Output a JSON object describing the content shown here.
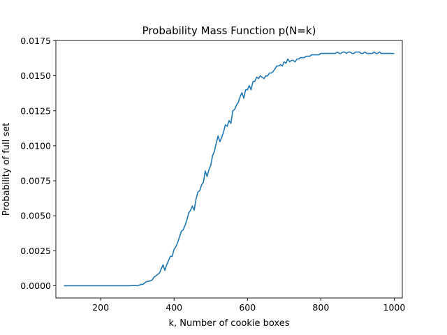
{
  "chart_data": {
    "type": "line",
    "title": "Probability Mass Function p(N=k)",
    "xlabel": "k, Number of cookie boxes",
    "ylabel": "Probability of full set",
    "xlim": [
      78,
      1022
    ],
    "ylim": [
      -0.000875,
      0.017525
    ],
    "xticks": [
      200,
      400,
      600,
      800,
      1000
    ],
    "yticks": [
      0.0,
      0.0025,
      0.005,
      0.0075,
      0.01,
      0.0125,
      0.015,
      0.0175
    ],
    "xtick_labels": [
      "200",
      "400",
      "600",
      "800",
      "1000"
    ],
    "ytick_labels": [
      "0.0000",
      "0.0025",
      "0.0050",
      "0.0075",
      "0.0100",
      "0.0125",
      "0.0150",
      "0.0175"
    ],
    "grid": false,
    "legend": "none",
    "colors": {
      "line": "#1f77b4",
      "axes": "#000000",
      "background": "#ffffff"
    },
    "series": [
      {
        "x": [
          100,
          180,
          280,
          290,
          295,
          300,
          305,
          310,
          315,
          320,
          325,
          330,
          335,
          340,
          345,
          350,
          355,
          360,
          365,
          370,
          375,
          380,
          385,
          390,
          395,
          400,
          405,
          410,
          415,
          420,
          425,
          430,
          435,
          440,
          445,
          450,
          455,
          460,
          465,
          470,
          475,
          480,
          485,
          490,
          495,
          500,
          505,
          510,
          515,
          520,
          525,
          530,
          535,
          540,
          545,
          550,
          555,
          560,
          565,
          570,
          575,
          580,
          585,
          590,
          595,
          600,
          605,
          610,
          615,
          620,
          625,
          630,
          635,
          640,
          645,
          650,
          655,
          660,
          665,
          670,
          675,
          680,
          685,
          690,
          695,
          700,
          705,
          710,
          715,
          720,
          725,
          730,
          735,
          740,
          745,
          750,
          755,
          760,
          765,
          770,
          775,
          780,
          785,
          790,
          795,
          800,
          805,
          810,
          815,
          820,
          825,
          830,
          835,
          840,
          845,
          850,
          855,
          860,
          865,
          870,
          875,
          880,
          885,
          890,
          895,
          900,
          905,
          910,
          915,
          920,
          925,
          930,
          935,
          940,
          945,
          950,
          955,
          960,
          965,
          970,
          975,
          980,
          985,
          990,
          995,
          1000
        ],
        "y": [
          0.0,
          0.0,
          0.0,
          2e-05,
          2e-05,
          0.0,
          5e-05,
          0.0001,
          0.0001,
          0.0002,
          0.0003,
          0.00032,
          0.00035,
          0.0004,
          0.0006,
          0.0007,
          0.0008,
          0.0009,
          0.0012,
          0.0015,
          0.0011,
          0.0015,
          0.0018,
          0.0021,
          0.0021,
          0.0026,
          0.0028,
          0.0031,
          0.0035,
          0.0039,
          0.004,
          0.0043,
          0.0047,
          0.0052,
          0.0054,
          0.0057,
          0.0054,
          0.0062,
          0.0067,
          0.0068,
          0.0072,
          0.0074,
          0.0082,
          0.0078,
          0.0083,
          0.0086,
          0.0093,
          0.0096,
          0.0102,
          0.0107,
          0.0103,
          0.0106,
          0.011,
          0.0115,
          0.0114,
          0.0118,
          0.0116,
          0.0125,
          0.0126,
          0.0129,
          0.0131,
          0.0135,
          0.0138,
          0.0134,
          0.014,
          0.014,
          0.0143,
          0.014,
          0.0146,
          0.0146,
          0.0149,
          0.0148,
          0.015,
          0.0149,
          0.0148,
          0.015,
          0.015,
          0.0152,
          0.0152,
          0.0153,
          0.0155,
          0.0157,
          0.0157,
          0.0158,
          0.0157,
          0.016,
          0.0159,
          0.0162,
          0.016,
          0.0161,
          0.0161,
          0.016,
          0.0162,
          0.0162,
          0.0163,
          0.0163,
          0.0163,
          0.0164,
          0.0164,
          0.0164,
          0.0165,
          0.0165,
          0.0165,
          0.0165,
          0.0165,
          0.0166,
          0.0166,
          0.0166,
          0.0166,
          0.0166,
          0.0166,
          0.0166,
          0.0166,
          0.0166,
          0.0167,
          0.0166,
          0.0166,
          0.0167,
          0.0167,
          0.0166,
          0.0167,
          0.0167,
          0.0166,
          0.0166,
          0.0167,
          0.0167,
          0.0167,
          0.0166,
          0.0166,
          0.0167,
          0.0166,
          0.0166,
          0.0166,
          0.0166,
          0.0167,
          0.0166,
          0.0166,
          0.0167,
          0.0166,
          0.0166,
          0.0166,
          0.0166,
          0.0166,
          0.0166,
          0.0166,
          0.0166
        ]
      }
    ]
  }
}
